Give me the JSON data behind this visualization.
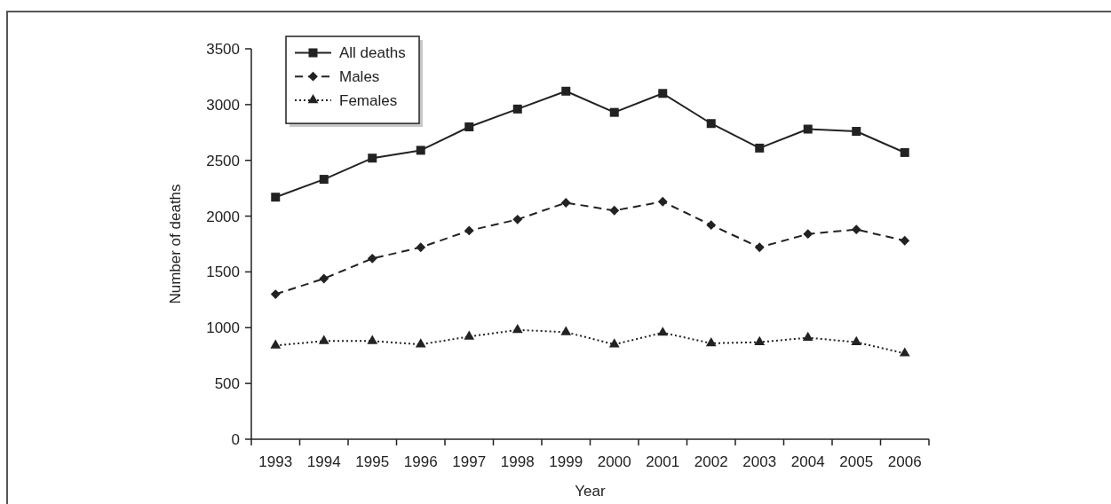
{
  "chart_data": {
    "type": "line",
    "xlabel": "Year",
    "ylabel": "Number of deaths",
    "categories": [
      "1993",
      "1994",
      "1995",
      "1996",
      "1997",
      "1998",
      "1999",
      "2000",
      "2001",
      "2002",
      "2003",
      "2004",
      "2005",
      "2006"
    ],
    "series": [
      {
        "name": "All deaths",
        "color": "#222222",
        "marker": "square",
        "line_style": "solid",
        "values": [
          2170,
          2330,
          2520,
          2590,
          2800,
          2960,
          3120,
          2930,
          3100,
          2830,
          2610,
          2780,
          2760,
          2570
        ]
      },
      {
        "name": "Males",
        "color": "#222222",
        "marker": "diamond",
        "line_style": "dashed",
        "values": [
          1300,
          1440,
          1620,
          1720,
          1870,
          1970,
          2120,
          2050,
          2130,
          1920,
          1720,
          1840,
          1880,
          1780
        ]
      },
      {
        "name": "Females",
        "color": "#222222",
        "marker": "triangle",
        "line_style": "dotted",
        "values": [
          840,
          880,
          880,
          850,
          920,
          980,
          960,
          850,
          955,
          860,
          870,
          910,
          870,
          770
        ]
      }
    ],
    "ylim": [
      0,
      3500
    ],
    "yticks": [
      0,
      500,
      1000,
      1500,
      2000,
      2500,
      3000,
      3500
    ],
    "grid": false,
    "legend": "top left"
  }
}
